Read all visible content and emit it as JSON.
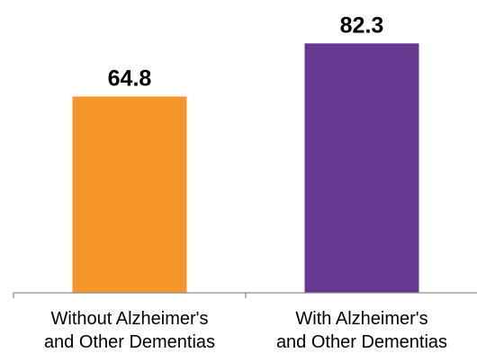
{
  "chart_data": {
    "type": "bar",
    "categories": [
      [
        "Without Alzheimer's",
        "and Other Dementias"
      ],
      [
        "With Alzheimer's",
        "and Other Dementias"
      ]
    ],
    "values": [
      64.8,
      82.3
    ],
    "value_labels": [
      "64.8",
      "82.3"
    ],
    "colors": [
      "#f7962a",
      "#663990"
    ],
    "title": "",
    "xlabel": "",
    "ylabel": "",
    "ylim": [
      0,
      100
    ],
    "grid": false,
    "legend": "none"
  }
}
